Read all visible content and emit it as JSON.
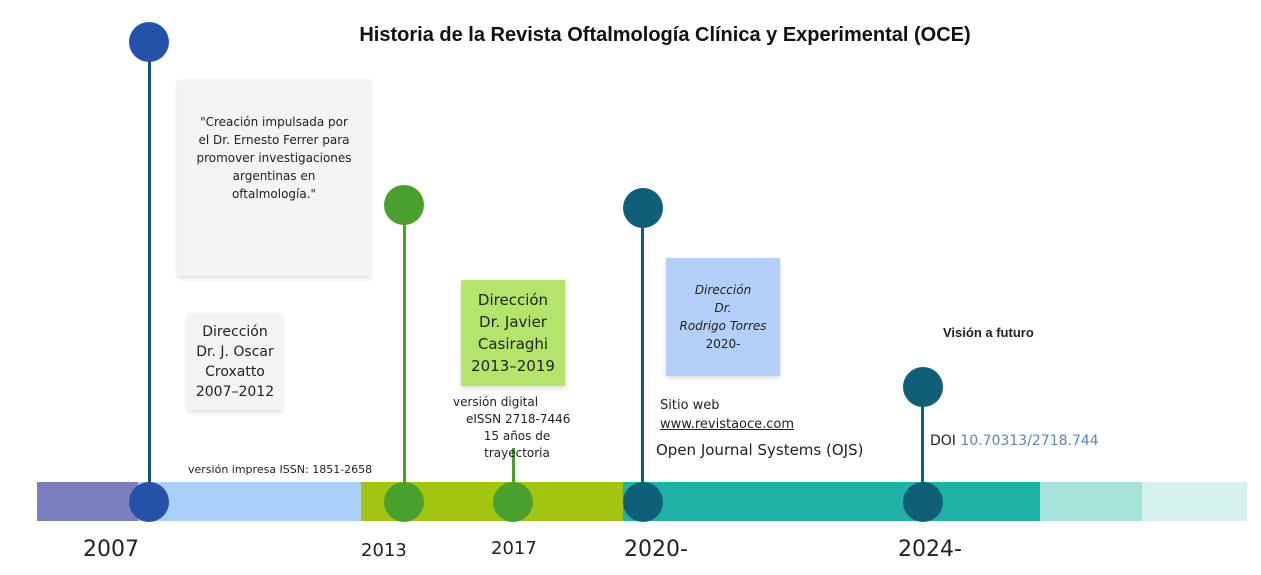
{
  "title": "Historia de la Revista Oftalmología Clínica y Experimental (OCE)",
  "colors": {
    "blue_dark": "#2352a8",
    "green": "#4aa02c",
    "teal_dark": "#0f5f78",
    "purple": "#7b7fbf",
    "light_blue": "#a8d0fb",
    "lime": "#a4c412",
    "teal": "#20b2a4"
  },
  "years": [
    "2007",
    "2013",
    "2017",
    "2020-",
    "2024-"
  ],
  "quote": "\"Creación impulsada por el Dr. Ernesto Ferrer para promover investigaciones argentinas en oftalmología.\"",
  "dir1": [
    "Dirección",
    "Dr. J. Oscar",
    "Croxatto",
    "2007–2012"
  ],
  "dir2": [
    "Dirección",
    "Dr. Javier",
    "Casiraghi",
    "2013–2019"
  ],
  "dir3": [
    "Dirección",
    "Dr.",
    "Rodrigo Torres",
    "2020-"
  ],
  "print_issn": "versión impresa ISSN: 1851-2658",
  "digital": [
    "versión digital",
    "eISSN 2718-7446",
    "15 años de trayectoria"
  ],
  "web_label": "Sitio web",
  "web_link": "www.revistaoce.com",
  "ojs": "Open Journal Systems (OJS)",
  "future": "Visión a futuro",
  "doi_label": "DOI",
  "doi_value": "10.70313/2718.744"
}
